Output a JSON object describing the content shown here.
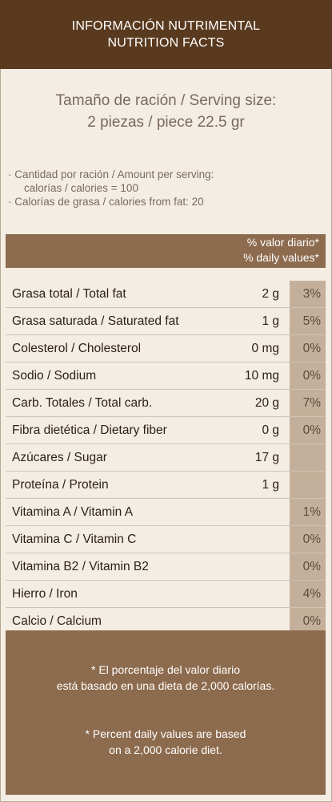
{
  "header": {
    "title_es": "INFORMACIÓN NUTRIMENTAL",
    "title_en": "NUTRITION FACTS"
  },
  "serving": {
    "line1": "Tamaño de ración / Serving size:",
    "line2": "2 piezas / piece 22.5 gr"
  },
  "amounts": {
    "line1": "· Cantidad por ración / Amount per serving:",
    "line2": "calorías / calories = 100",
    "line3": "· Calorías de grasa / calories from fat: 20"
  },
  "table": {
    "dv_header_es": "% valor diario*",
    "dv_header_en": "% daily values*",
    "rows": [
      {
        "name": "Grasa total / Total fat",
        "amount": "2 g",
        "pct": "3%"
      },
      {
        "name": "Grasa saturada / Saturated fat",
        "amount": "1 g",
        "pct": "5%"
      },
      {
        "name": "Colesterol / Cholesterol",
        "amount": "0 mg",
        "pct": "0%"
      },
      {
        "name": "Sodio / Sodium",
        "amount": "10 mg",
        "pct": "0%"
      },
      {
        "name": "Carb. Totales / Total carb.",
        "amount": "20 g",
        "pct": "7%"
      },
      {
        "name": "Fibra dietética / Dietary fiber",
        "amount": "0 g",
        "pct": "0%"
      },
      {
        "name": "Azúcares / Sugar",
        "amount": "17 g",
        "pct": ""
      },
      {
        "name": "Proteína / Protein",
        "amount": "1 g",
        "pct": ""
      },
      {
        "name": "Vitamina A / Vitamin A",
        "amount": "",
        "pct": "1%"
      },
      {
        "name": "Vitamina C / Vitamin C",
        "amount": "",
        "pct": "0%"
      },
      {
        "name": "Vitamina B2 / Vitamin B2",
        "amount": "",
        "pct": "0%"
      },
      {
        "name": "Hierro / Iron",
        "amount": "",
        "pct": "4%"
      },
      {
        "name": "Calcio / Calcium",
        "amount": "",
        "pct": "0%"
      }
    ]
  },
  "footer": {
    "note_es_1": "* El porcentaje del valor diario",
    "note_es_2": "está basado en una dieta de 2,000 calorías.",
    "note_en_1": "* Percent daily values are based",
    "note_en_2": "on a 2,000 calorie diet."
  },
  "colors": {
    "header_bg": "#5a3a1f",
    "accent": "#8d6b4e",
    "pct_cell": "#c4b09a",
    "background": "#f3ede4"
  }
}
